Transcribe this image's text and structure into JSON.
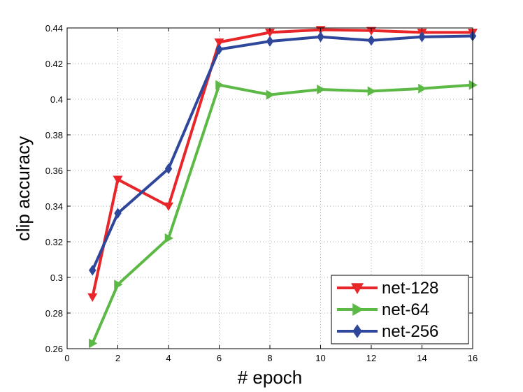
{
  "chart_data": {
    "type": "line",
    "xlabel": "# epoch",
    "ylabel": "clip accuracy",
    "xlim": [
      0,
      16
    ],
    "ylim": [
      0.26,
      0.44
    ],
    "xticks": [
      "0",
      "2",
      "4",
      "6",
      "8",
      "10",
      "12",
      "14",
      "16"
    ],
    "yticks": [
      "0.26",
      "0.28",
      "0.3",
      "0.32",
      "0.34",
      "0.36",
      "0.38",
      "0.4",
      "0.42",
      "0.44"
    ],
    "grid": true,
    "legend_position": "bottom-right",
    "series": [
      {
        "name": "net-128",
        "color": "#e8262a",
        "marker": "triangle-down",
        "x": [
          1,
          2,
          4,
          6,
          8,
          10,
          12,
          14,
          16
        ],
        "y": [
          0.289,
          0.355,
          0.34,
          0.432,
          0.4375,
          0.439,
          0.4385,
          0.4375,
          0.4375
        ]
      },
      {
        "name": "net-64",
        "color": "#5cb946",
        "marker": "triangle-right",
        "x": [
          1,
          2,
          4,
          6,
          8,
          10,
          12,
          14,
          16
        ],
        "y": [
          0.263,
          0.296,
          0.322,
          0.408,
          0.4025,
          0.4055,
          0.4045,
          0.406,
          0.408
        ]
      },
      {
        "name": "net-256",
        "color": "#2f479b",
        "marker": "diamond",
        "x": [
          1,
          2,
          4,
          6,
          8,
          10,
          12,
          14,
          16
        ],
        "y": [
          0.304,
          0.336,
          0.361,
          0.428,
          0.4325,
          0.435,
          0.433,
          0.435,
          0.4355
        ]
      }
    ]
  }
}
